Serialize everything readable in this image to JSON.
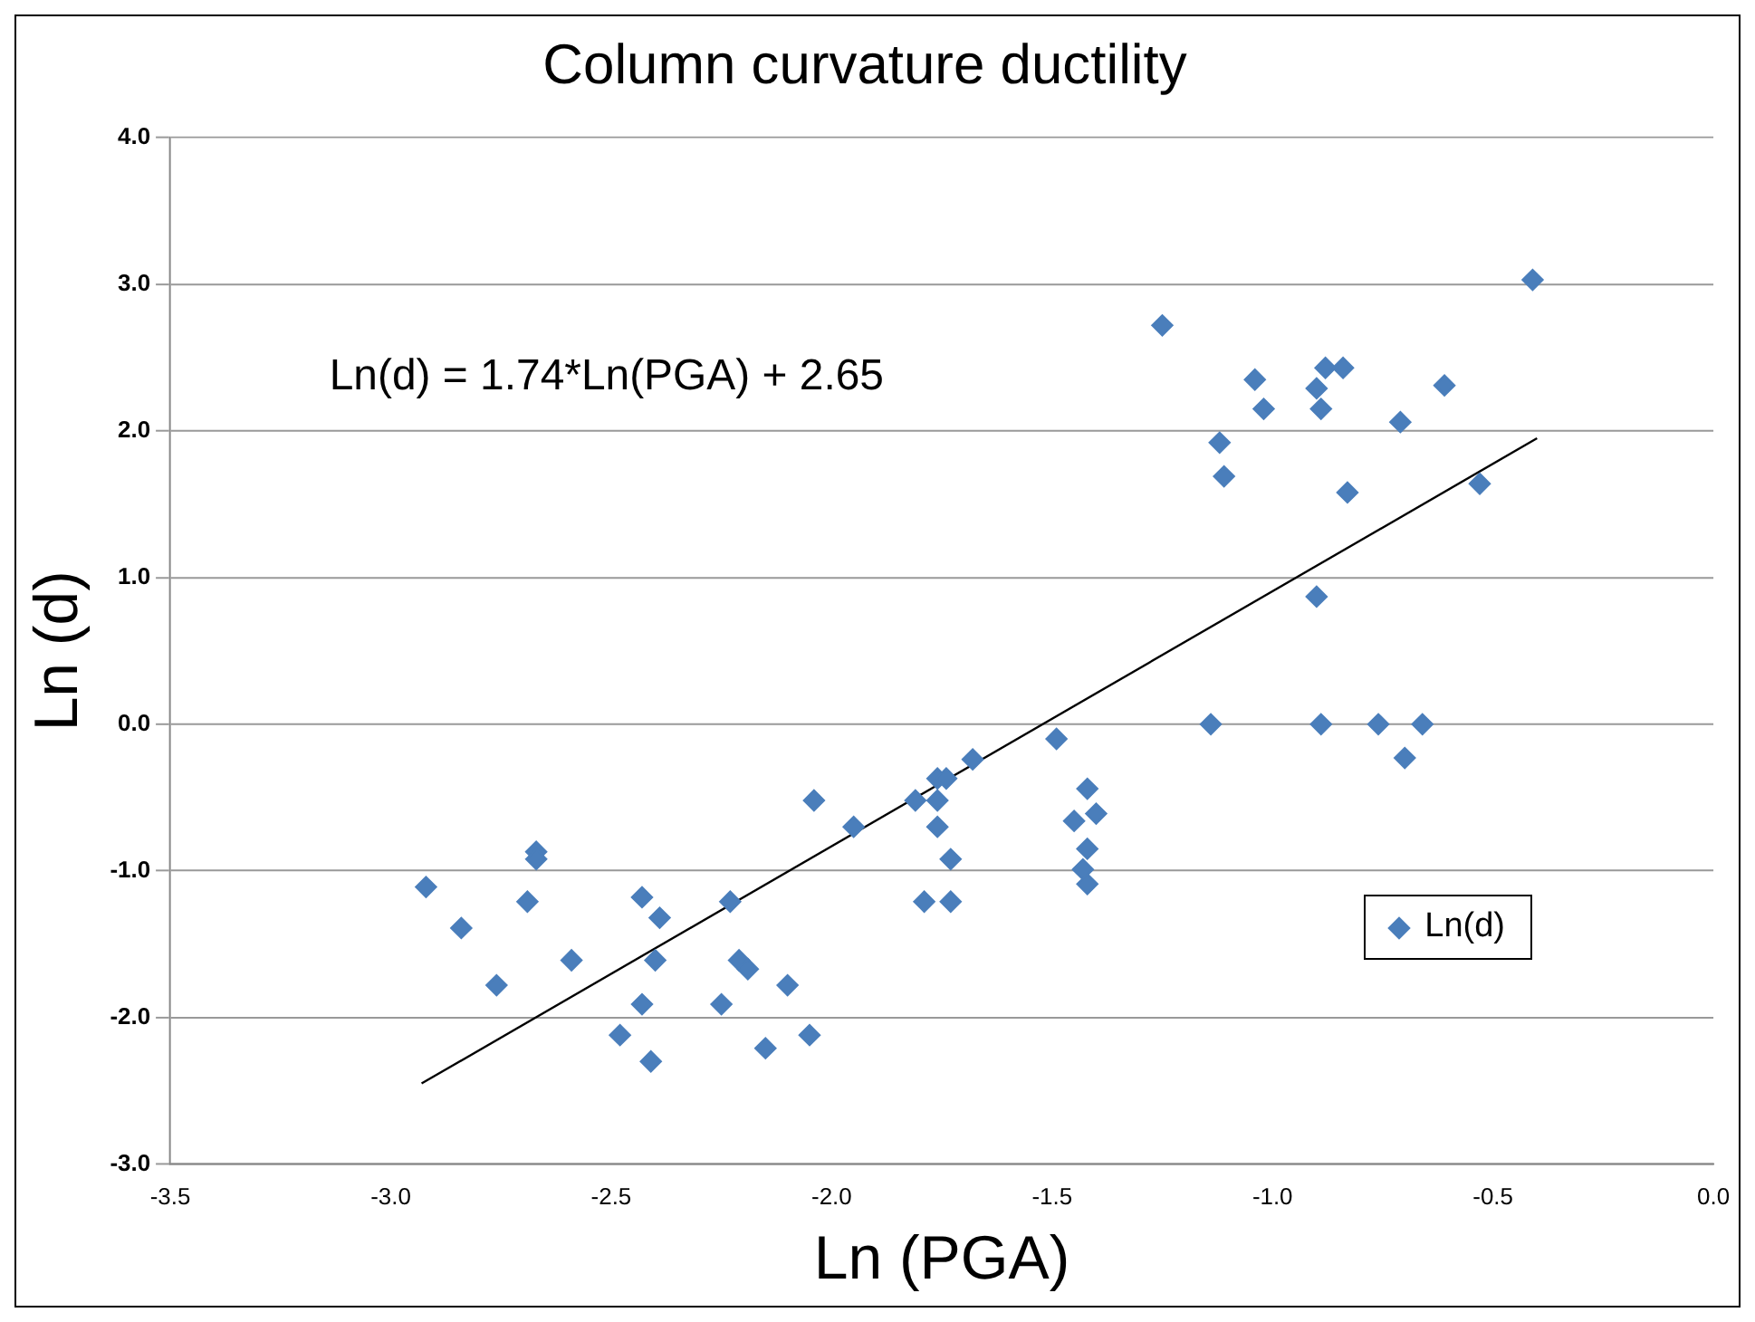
{
  "chart_data": {
    "type": "scatter",
    "title": "Column curvature ductility",
    "xlabel": "Ln (PGA)",
    "ylabel": "Ln (d)",
    "annotations": [
      "Ln(d) = 1.74*Ln(PGA) + 2.65"
    ],
    "series": [
      {
        "name": "Ln(d)",
        "color": "#4a7ebb",
        "marker": "diamond",
        "x": [
          -2.92,
          -2.84,
          -2.76,
          -2.69,
          -2.67,
          -2.67,
          -2.59,
          -2.48,
          -2.43,
          -2.43,
          -2.4,
          -2.41,
          -2.39,
          -2.25,
          -2.23,
          -2.21,
          -2.19,
          -2.15,
          -2.1,
          -2.05,
          -2.04,
          -1.95,
          -1.81,
          -1.76,
          -1.76,
          -1.74,
          -1.76,
          -1.73,
          -1.79,
          -1.73,
          -1.68,
          -1.49,
          -1.42,
          -1.45,
          -1.4,
          -1.42,
          -1.43,
          -1.42,
          -1.25,
          -1.04,
          -1.02,
          -1.12,
          -1.11,
          -0.9,
          -0.88,
          -0.84,
          -0.89,
          -0.83,
          -0.71,
          -0.61,
          -0.53,
          -0.41,
          -0.9,
          -1.14,
          -0.89,
          -0.76,
          -0.66,
          -0.7
        ],
        "values": [
          -1.11,
          -1.39,
          -1.78,
          -1.21,
          -0.87,
          -0.92,
          -1.61,
          -2.12,
          -1.18,
          -1.91,
          -1.61,
          -2.3,
          -1.32,
          -1.91,
          -1.21,
          -1.61,
          -1.67,
          -2.21,
          -1.78,
          -2.12,
          -0.52,
          -0.7,
          -0.52,
          -0.52,
          -0.37,
          -0.37,
          -0.7,
          -0.92,
          -1.21,
          -1.21,
          -0.24,
          -0.1,
          -0.44,
          -0.66,
          -0.61,
          -0.85,
          -0.99,
          -1.09,
          2.72,
          2.35,
          2.15,
          1.92,
          1.69,
          2.29,
          2.43,
          2.43,
          2.15,
          1.58,
          2.06,
          2.31,
          1.64,
          3.03,
          0.87,
          0.0,
          0.0,
          0.0,
          0.0,
          -0.23
        ]
      },
      {
        "type": "line",
        "color": "#000000",
        "marker": "none",
        "x": [
          -2.93,
          -0.4
        ],
        "values": [
          -2.45,
          1.95
        ]
      }
    ],
    "xlim": [
      -3.5,
      0.0
    ],
    "xticks": [
      {
        "value": -3.5,
        "label": "-3.5"
      },
      {
        "value": -3.0,
        "label": "-3.0"
      },
      {
        "value": -2.5,
        "label": "-2.5"
      },
      {
        "value": -2.0,
        "label": "-2.0"
      },
      {
        "value": -1.5,
        "label": "-1.5"
      },
      {
        "value": -1.0,
        "label": "-1.0"
      },
      {
        "value": -0.5,
        "label": "-0.5"
      },
      {
        "value": 0.0,
        "label": "0.0"
      }
    ],
    "ylim": [
      -3.0,
      4.0
    ],
    "yticks": [
      {
        "value": -3.0,
        "label": "-3.0"
      },
      {
        "value": -2.0,
        "label": "-2.0"
      },
      {
        "value": -1.0,
        "label": "-1.0"
      },
      {
        "value": 0.0,
        "label": "0.0"
      },
      {
        "value": 1.0,
        "label": "1.0"
      },
      {
        "value": 2.0,
        "label": "2.0"
      },
      {
        "value": 3.0,
        "label": "3.0"
      },
      {
        "value": 4.0,
        "label": "4.0"
      }
    ],
    "grid": "y",
    "legend": "bottom right"
  }
}
